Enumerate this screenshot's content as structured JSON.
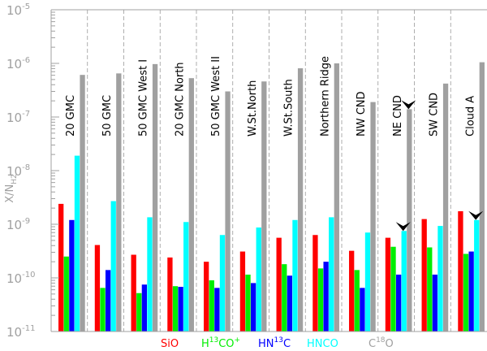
{
  "chart_data": {
    "type": "bar",
    "yscale": "log",
    "ylim": [
      1e-11,
      1e-05
    ],
    "ylabel": "X/N",
    "ylabel_sub": "H2",
    "ytick_labels": [
      {
        "base": "10",
        "exp": "-11"
      },
      {
        "base": "10",
        "exp": "-10"
      },
      {
        "base": "10",
        "exp": "-9"
      },
      {
        "base": "10",
        "exp": "-8"
      },
      {
        "base": "10",
        "exp": "-7"
      },
      {
        "base": "10",
        "exp": "-6"
      },
      {
        "base": "10",
        "exp": "-5"
      }
    ],
    "categories": [
      "20 GMC",
      "50 GMC",
      "50 GMC West I",
      "20 GMC North",
      "50 GMC West II",
      "W.St.North",
      "W.St.South",
      "Northern Ridge",
      "NW CND",
      "NE CND",
      "SW CND",
      "Cloud A"
    ],
    "series": [
      {
        "name": "SiO",
        "color": "#ff0000",
        "values": [
          2.4e-09,
          4.1e-10,
          2.7e-10,
          2.4e-10,
          2e-10,
          3.1e-10,
          5.6e-10,
          6.3e-10,
          3.2e-10,
          5.6e-10,
          1.25e-09,
          1.75e-09
        ]
      },
      {
        "name": "H13CO+",
        "color": "#00ee00",
        "values": [
          2.5e-10,
          6.5e-11,
          5.2e-11,
          7e-11,
          9e-11,
          1.15e-10,
          1.8e-10,
          1.5e-10,
          1.4e-10,
          3.8e-10,
          3.7e-10,
          2.8e-10
        ]
      },
      {
        "name": "HN13C",
        "color": "#0000ff",
        "values": [
          1.2e-09,
          1.4e-10,
          7.5e-11,
          6.8e-11,
          6.5e-11,
          8e-11,
          1.1e-10,
          2e-10,
          6.5e-11,
          1.15e-10,
          1.15e-10,
          3.1e-10
        ]
      },
      {
        "name": "HNCO",
        "color": "#00ffff",
        "values": [
          1.9e-08,
          2.7e-09,
          1.35e-09,
          1.1e-09,
          6.3e-10,
          8.7e-10,
          1.2e-09,
          1.35e-09,
          7e-10,
          7.5e-10,
          9.3e-10,
          1.2e-09
        ]
      },
      {
        "name": "C18O",
        "color": "#a0a0a0",
        "values": [
          6.1e-07,
          6.5e-07,
          9.7e-07,
          5.3e-07,
          3e-07,
          4.6e-07,
          8.1e-07,
          1e-06,
          1.9e-07,
          1.4e-07,
          4.2e-07,
          1.05e-06
        ]
      }
    ],
    "upper_limit_markers": [
      {
        "category": "NE CND",
        "series": "HNCO"
      },
      {
        "category": "NE CND",
        "series": "C18O"
      },
      {
        "category": "Cloud A",
        "series": "HNCO"
      }
    ],
    "legend": [
      {
        "parts": [
          {
            "t": "SiO"
          }
        ],
        "color": "#ff0000"
      },
      {
        "parts": [
          {
            "t": "H"
          },
          {
            "t": "13",
            "sup": true
          },
          {
            "t": "CO"
          },
          {
            "t": "+",
            "sup": true
          }
        ],
        "color": "#00ee00"
      },
      {
        "parts": [
          {
            "t": "HN"
          },
          {
            "t": "13",
            "sup": true
          },
          {
            "t": "C"
          }
        ],
        "color": "#0000ff"
      },
      {
        "parts": [
          {
            "t": "HNCO"
          }
        ],
        "color": "#00ffff"
      },
      {
        "parts": [
          {
            "t": "C"
          },
          {
            "t": "18",
            "sup": true
          },
          {
            "t": "O"
          }
        ],
        "color": "#a0a0a0"
      }
    ],
    "legend_position": "bottom"
  }
}
